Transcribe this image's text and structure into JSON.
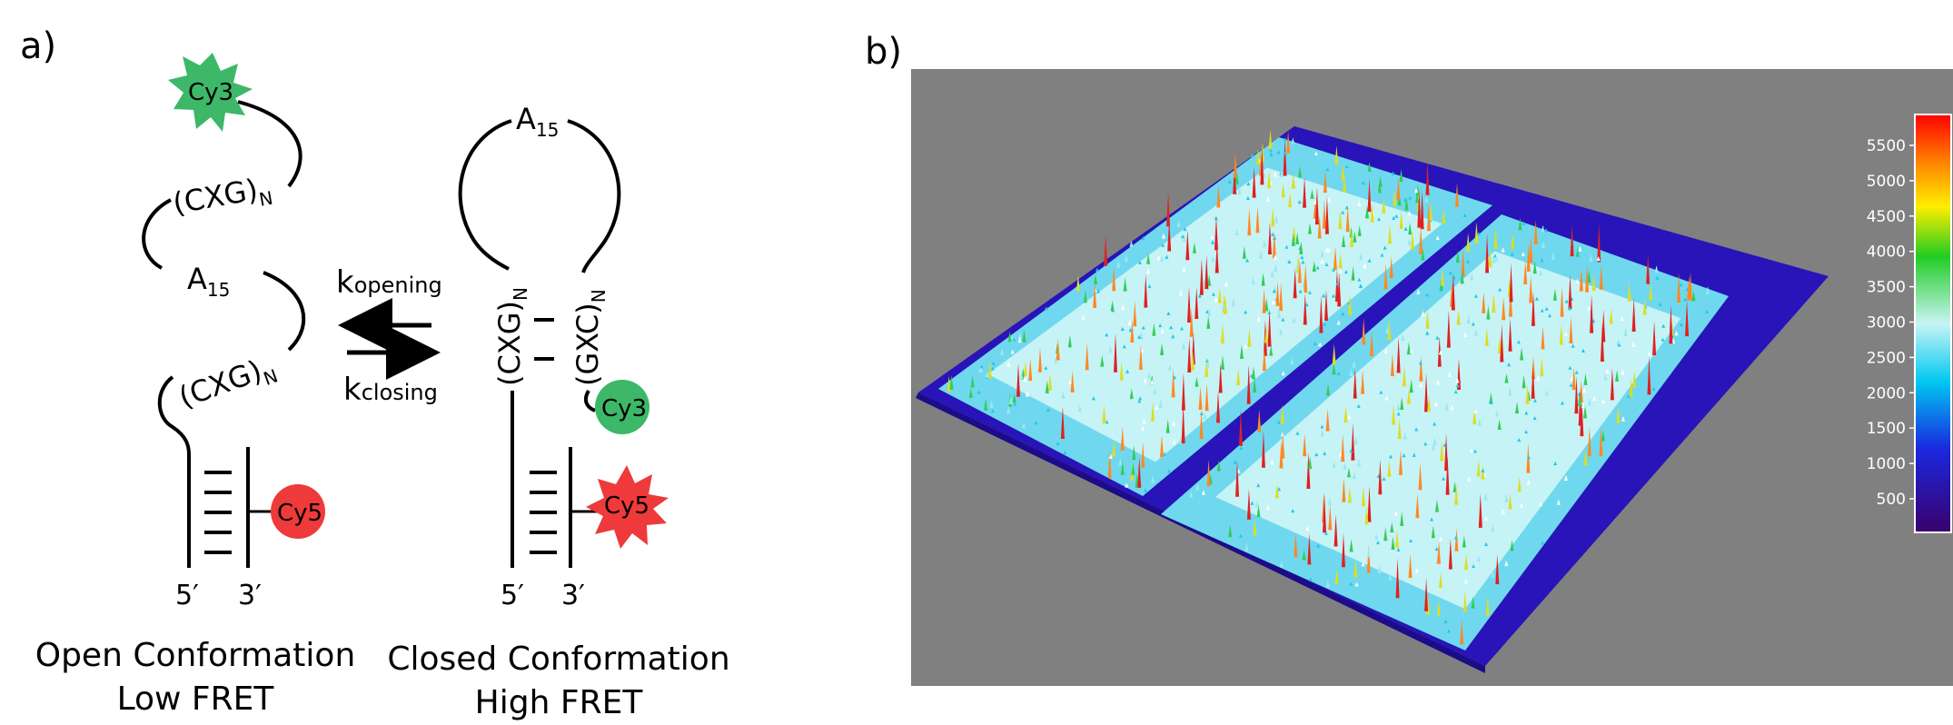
{
  "panel_a": {
    "label": "a)",
    "open": {
      "dye_top": "Cy3",
      "seq_upper": "(CXG)",
      "seq_upper_sub": "N",
      "loop": "A",
      "loop_sub": "15",
      "seq_lower": "(CXG)",
      "seq_lower_sub": "N",
      "dye_bottom": "Cy5",
      "end_5": "5′",
      "end_3": "3′",
      "caption_line1": "Open Conformation",
      "caption_line2": "Low FRET"
    },
    "rates": {
      "k_open": "k",
      "k_open_sub": "opening",
      "k_close": "k",
      "k_close_sub": "closing"
    },
    "closed": {
      "loop": "A",
      "loop_sub": "15",
      "stem_left": "(CXG)",
      "stem_left_sub": "N",
      "stem_right": "(GXC)",
      "stem_right_sub": "N",
      "dye_green": "Cy3",
      "dye_red": "Cy5",
      "end_5": "5′",
      "end_3": "3′",
      "caption_line1": "Closed Conformation",
      "caption_line2": "High FRET"
    },
    "colors": {
      "cy3": "#3cb868",
      "cy5": "#ee3a3a"
    }
  },
  "panel_b": {
    "label": "b)",
    "colorbar_ticks": [
      "5500",
      "5000",
      "4500",
      "4000",
      "3500",
      "3000",
      "2500",
      "2000",
      "1500",
      "1000",
      "500"
    ],
    "background": "#808080"
  }
}
